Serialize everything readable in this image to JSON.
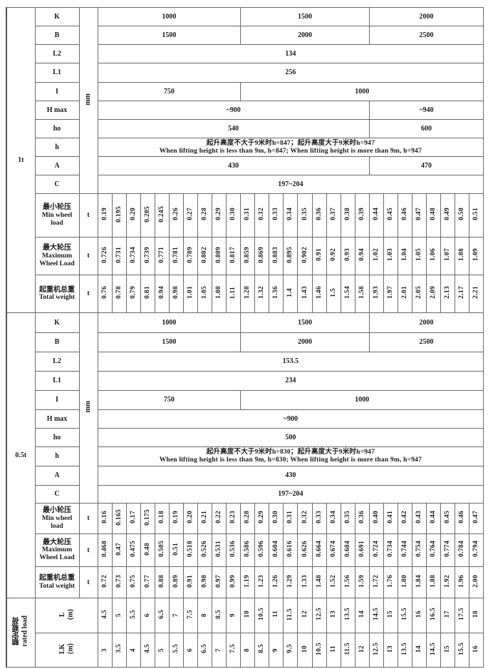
{
  "sections": [
    {
      "load": "1t",
      "unit_mm": "mm",
      "unit_t": "t",
      "rows": [
        {
          "label": "K",
          "values": [
            "1000",
            "1500",
            "2000"
          ]
        },
        {
          "label": "B",
          "values": [
            "1500",
            "2000",
            "2500"
          ]
        },
        {
          "label": "L2",
          "values": [
            "134"
          ]
        },
        {
          "label": "L1",
          "values": [
            "256"
          ]
        },
        {
          "label": "I",
          "values": [
            "750",
            "1000"
          ]
        },
        {
          "label": "H max",
          "values": [
            "~900",
            "~940"
          ]
        },
        {
          "label": "ho",
          "values": [
            "540",
            "600"
          ]
        },
        {
          "label": "h",
          "values": [
            "起升高度不大于9米时h=847；起升高度大于9米时h=947",
            "When lifting height is less than 9m, h=847; When lifting height is more than 9m, h=947"
          ]
        },
        {
          "label": "A",
          "values": [
            "430",
            "470"
          ]
        },
        {
          "label": "C",
          "values": [
            "197~204"
          ]
        }
      ],
      "wheel_rows": [
        {
          "label_cn": "最小轮压",
          "label_en": "Min wheel load",
          "values": [
            "0.19",
            "0.195",
            "0.20",
            "0.205",
            "0.245",
            "0.26",
            "0.27",
            "0.28",
            "0.29",
            "0.30",
            "0.31",
            "0.32",
            "0.33",
            "0.34",
            "0.35",
            "0.36",
            "0.37",
            "0.38",
            "0.39",
            "0.44",
            "0.45",
            "0.46",
            "0.47",
            "0.48",
            "0.49",
            "0.50",
            "0.51"
          ]
        },
        {
          "label_cn": "最大轮压",
          "label_en": "Maximum Wheel Load",
          "values": [
            "0.726",
            "0.731",
            "0.734",
            "0.739",
            "0.771",
            "0.781",
            "0.789",
            "0.802",
            "0.809",
            "0.817",
            "0.859",
            "0.869",
            "0.883",
            "0.895",
            "0.902",
            "0.91",
            "0.92",
            "0.93",
            "0.94",
            "1.02",
            "1.03",
            "1.04",
            "1.05",
            "1.06",
            "1.07",
            "1.08",
            "1.09"
          ]
        },
        {
          "label_cn": "起重机总重",
          "label_en": "Total weight",
          "values": [
            "0.76",
            "0.78",
            "0.79",
            "0.81",
            "0.94",
            "0.98",
            "1.01",
            "1.05",
            "1.08",
            "1.11",
            "1.28",
            "1.32",
            "1.36",
            "1.4",
            "1.43",
            "1.46",
            "1.5",
            "1.54",
            "1.58",
            "1.93",
            "1.97",
            "2.01",
            "2.05",
            "2.09",
            "2.13",
            "2.17",
            "2.21"
          ]
        }
      ]
    },
    {
      "load": "0.5t",
      "unit_mm": "mm",
      "unit_t": "t",
      "rows": [
        {
          "label": "K",
          "values": [
            "1000",
            "1500",
            "2000"
          ]
        },
        {
          "label": "B",
          "values": [
            "1500",
            "2000",
            "2500"
          ]
        },
        {
          "label": "L2",
          "values": [
            "153.5"
          ]
        },
        {
          "label": "L1",
          "values": [
            "234"
          ]
        },
        {
          "label": "I",
          "values": [
            "750",
            "1000"
          ]
        },
        {
          "label": "H max",
          "values": [
            "~900"
          ]
        },
        {
          "label": "ho",
          "values": [
            "500"
          ]
        },
        {
          "label": "h",
          "values": [
            "起升高度不大于9米时h=830；起升高度大于9米时h=947",
            "When lifting height is less than 9m, h=830; When lifting height is more than 9m, h=947"
          ]
        },
        {
          "label": "A",
          "values": [
            "430"
          ]
        },
        {
          "label": "C",
          "values": [
            "197~204"
          ]
        }
      ],
      "wheel_rows": [
        {
          "label_cn": "最小轮压",
          "label_en": "Min wheel load",
          "values": [
            "0.16",
            "0.165",
            "0.17",
            "0.175",
            "0.18",
            "0.19",
            "0.20",
            "0.21",
            "0.22",
            "0.23",
            "0.28",
            "0.29",
            "0.30",
            "0.31",
            "0.32",
            "0.33",
            "0.34",
            "0.35",
            "0.36",
            "0.40",
            "0.41",
            "0.42",
            "0.43",
            "0.44",
            "0.45",
            "0.46",
            "0.47"
          ]
        },
        {
          "label_cn": "最大轮压",
          "label_en": "Maximum Wheel Load",
          "values": [
            "0.468",
            "0.47",
            "0.475",
            "0.48",
            "0.505",
            "0.51",
            "0.518",
            "0.526",
            "0.531",
            "0.536",
            "0.586",
            "0.596",
            "0.604",
            "0.616",
            "0.626",
            "0.664",
            "0.674",
            "0.684",
            "0.691",
            "0.724",
            "0.734",
            "0.744",
            "0.754",
            "0.764",
            "0.774",
            "0.784",
            "0.794"
          ]
        },
        {
          "label_cn": "起重机总重",
          "label_en": "Total weight",
          "values": [
            "0.72",
            "0.73",
            "0.75",
            "0.77",
            "0.88",
            "0.89",
            "0.91",
            "0.98",
            "0.97",
            "0.99",
            "1.19",
            "1.23",
            "1.26",
            "1.29",
            "1.33",
            "1.48",
            "1.52",
            "1.56",
            "1.59",
            "1.72",
            "1.76",
            "1.80",
            "1.84",
            "1.88",
            "1.92",
            "1.96",
            "2.00"
          ]
        }
      ]
    }
  ],
  "rated_load": {
    "label_cn": "额定载荷",
    "label_en": "rated load",
    "rows": [
      {
        "label": "L",
        "unit": "(m)",
        "values": [
          "4.5",
          "5",
          "5.5",
          "6",
          "6.5",
          "7",
          "7.5",
          "8",
          "8.5",
          "9",
          "10",
          "10.5",
          "11",
          "11.5",
          "12",
          "12.5",
          "13",
          "13.5",
          "14",
          "14.5",
          "15",
          "15.5",
          "16",
          "16.5",
          "17",
          "17.5",
          "18"
        ]
      },
      {
        "label": "LK",
        "unit": "(m)",
        "values": [
          "3",
          "3.5",
          "4",
          "4.5",
          "5",
          "5.5",
          "6",
          "6.5",
          "7",
          "7.5",
          "8",
          "8.5",
          "9",
          "9.5",
          "10",
          "10.5",
          "11",
          "11.5",
          "12",
          "12.5",
          "13",
          "13.5",
          "14",
          "14.5",
          "15",
          "15.5",
          "16"
        ]
      }
    ]
  }
}
